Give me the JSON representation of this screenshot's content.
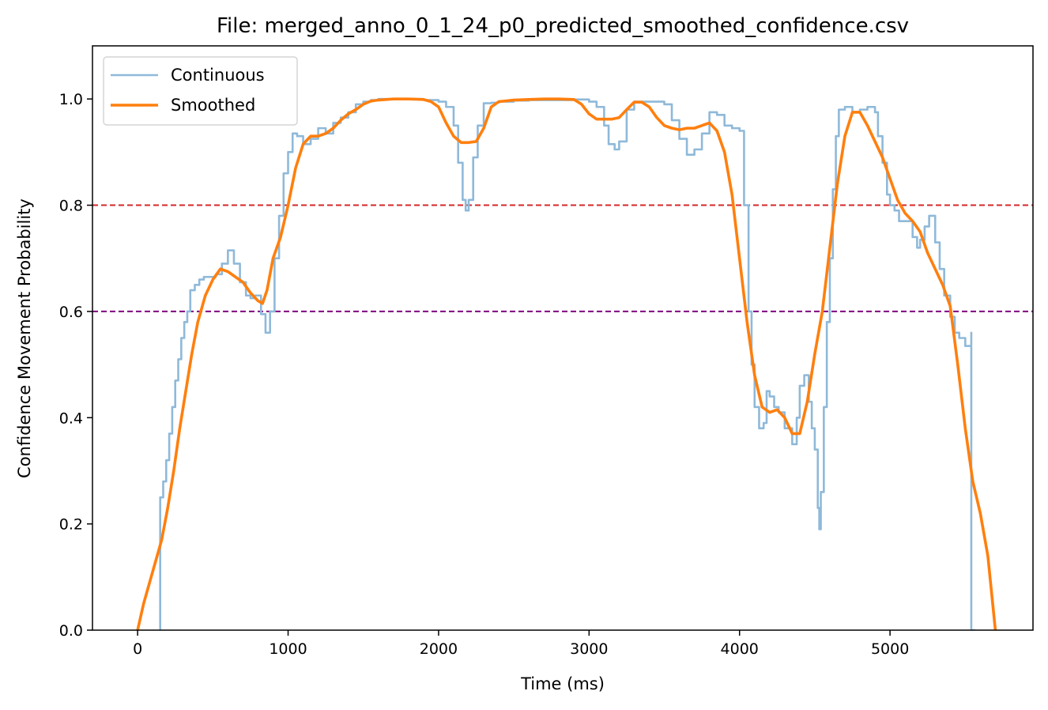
{
  "chart_data": {
    "type": "line",
    "title": "File: merged_anno_0_1_24_p0_predicted_smoothed_confidence.csv",
    "xlabel": "Time (ms)",
    "ylabel": "Confidence Movement Probability",
    "xlim": [
      -300,
      5950
    ],
    "ylim": [
      0.0,
      1.1
    ],
    "x_ticks": [
      0,
      1000,
      2000,
      3000,
      4000,
      5000
    ],
    "x_tick_labels": [
      "0",
      "1000",
      "2000",
      "3000",
      "4000",
      "5000"
    ],
    "y_ticks": [
      0.0,
      0.2,
      0.4,
      0.6,
      0.8,
      1.0
    ],
    "y_tick_labels": [
      "0.0",
      "0.2",
      "0.4",
      "0.6",
      "0.8",
      "1.0"
    ],
    "grid": false,
    "legend_position": "top-left",
    "hlines": [
      {
        "y": 0.8,
        "color": "#d62728",
        "style": "dashed"
      },
      {
        "y": 0.6,
        "color": "#800080",
        "style": "dashed"
      }
    ],
    "series": [
      {
        "name": "Continuous",
        "color": "#8fb9d9",
        "style": "step",
        "x": [
          150,
          150,
          170,
          190,
          210,
          230,
          250,
          270,
          290,
          310,
          330,
          350,
          380,
          410,
          440,
          480,
          520,
          560,
          600,
          640,
          680,
          720,
          750,
          780,
          820,
          850,
          880,
          910,
          940,
          970,
          1000,
          1030,
          1060,
          1100,
          1150,
          1200,
          1250,
          1300,
          1350,
          1400,
          1450,
          1500,
          1550,
          1600,
          1700,
          1800,
          1900,
          2000,
          2050,
          2100,
          2130,
          2160,
          2180,
          2200,
          2230,
          2260,
          2300,
          2350,
          2400,
          2500,
          2600,
          2700,
          2800,
          2900,
          3000,
          3050,
          3100,
          3130,
          3170,
          3200,
          3250,
          3300,
          3400,
          3500,
          3550,
          3600,
          3650,
          3700,
          3750,
          3800,
          3850,
          3900,
          3950,
          4000,
          4030,
          4060,
          4080,
          4100,
          4130,
          4160,
          4180,
          4200,
          4230,
          4260,
          4300,
          4350,
          4380,
          4400,
          4430,
          4460,
          4480,
          4500,
          4520,
          4530,
          4540,
          4560,
          4580,
          4600,
          4620,
          4640,
          4660,
          4700,
          4750,
          4800,
          4850,
          4900,
          4920,
          4950,
          4980,
          5000,
          5030,
          5060,
          5100,
          5150,
          5180,
          5200,
          5230,
          5260,
          5300,
          5330,
          5360,
          5400,
          5430,
          5460,
          5500,
          5530,
          5540,
          5540,
          5560
        ],
        "y": [
          0.0,
          0.25,
          0.28,
          0.32,
          0.37,
          0.42,
          0.47,
          0.51,
          0.55,
          0.58,
          0.6,
          0.64,
          0.65,
          0.66,
          0.665,
          0.665,
          0.67,
          0.69,
          0.715,
          0.69,
          0.655,
          0.63,
          0.625,
          0.63,
          0.595,
          0.56,
          0.6,
          0.7,
          0.78,
          0.86,
          0.9,
          0.935,
          0.93,
          0.915,
          0.925,
          0.945,
          0.935,
          0.955,
          0.965,
          0.975,
          0.99,
          0.995,
          0.998,
          1.0,
          1.0,
          1.0,
          0.998,
          0.995,
          0.985,
          0.95,
          0.88,
          0.81,
          0.79,
          0.81,
          0.89,
          0.95,
          0.992,
          0.993,
          0.995,
          0.997,
          0.998,
          0.998,
          0.998,
          0.999,
          0.995,
          0.985,
          0.95,
          0.915,
          0.905,
          0.92,
          0.98,
          0.995,
          0.995,
          0.99,
          0.96,
          0.925,
          0.895,
          0.905,
          0.935,
          0.975,
          0.97,
          0.95,
          0.945,
          0.94,
          0.8,
          0.6,
          0.5,
          0.42,
          0.38,
          0.39,
          0.45,
          0.44,
          0.42,
          0.41,
          0.38,
          0.35,
          0.4,
          0.46,
          0.48,
          0.43,
          0.38,
          0.34,
          0.23,
          0.19,
          0.26,
          0.42,
          0.58,
          0.7,
          0.83,
          0.93,
          0.98,
          0.985,
          0.975,
          0.98,
          0.985,
          0.975,
          0.93,
          0.88,
          0.82,
          0.8,
          0.79,
          0.77,
          0.77,
          0.74,
          0.72,
          0.735,
          0.76,
          0.78,
          0.73,
          0.68,
          0.63,
          0.59,
          0.56,
          0.55,
          0.535,
          0.535,
          0.56,
          0.0,
          0.0
        ]
      },
      {
        "name": "Smoothed",
        "color": "#ff7f0e",
        "style": "line",
        "x": [
          0,
          40,
          80,
          120,
          160,
          200,
          240,
          280,
          320,
          360,
          400,
          450,
          500,
          550,
          600,
          650,
          700,
          750,
          800,
          830,
          860,
          900,
          950,
          1000,
          1050,
          1100,
          1150,
          1200,
          1250,
          1300,
          1350,
          1400,
          1450,
          1500,
          1550,
          1600,
          1700,
          1800,
          1900,
          1950,
          2000,
          2050,
          2100,
          2150,
          2200,
          2250,
          2300,
          2350,
          2400,
          2500,
          2600,
          2700,
          2800,
          2900,
          2950,
          3000,
          3050,
          3100,
          3150,
          3200,
          3250,
          3300,
          3350,
          3400,
          3450,
          3500,
          3550,
          3600,
          3650,
          3700,
          3750,
          3800,
          3850,
          3900,
          3950,
          4000,
          4050,
          4100,
          4150,
          4200,
          4250,
          4300,
          4350,
          4400,
          4450,
          4500,
          4550,
          4600,
          4650,
          4700,
          4750,
          4800,
          4850,
          4900,
          4950,
          5000,
          5050,
          5100,
          5150,
          5200,
          5250,
          5300,
          5350,
          5400,
          5450,
          5500,
          5550,
          5600,
          5650,
          5700
        ],
        "y": [
          0.0,
          0.05,
          0.09,
          0.13,
          0.17,
          0.23,
          0.3,
          0.38,
          0.45,
          0.52,
          0.58,
          0.63,
          0.66,
          0.68,
          0.675,
          0.665,
          0.655,
          0.635,
          0.62,
          0.615,
          0.64,
          0.7,
          0.74,
          0.8,
          0.87,
          0.915,
          0.93,
          0.93,
          0.935,
          0.945,
          0.96,
          0.972,
          0.98,
          0.99,
          0.996,
          0.998,
          1.0,
          1.0,
          0.999,
          0.995,
          0.985,
          0.955,
          0.93,
          0.918,
          0.918,
          0.92,
          0.945,
          0.985,
          0.995,
          0.998,
          0.999,
          1.0,
          1.0,
          0.999,
          0.99,
          0.972,
          0.962,
          0.962,
          0.962,
          0.965,
          0.98,
          0.994,
          0.994,
          0.985,
          0.965,
          0.95,
          0.945,
          0.942,
          0.945,
          0.945,
          0.95,
          0.955,
          0.94,
          0.9,
          0.82,
          0.7,
          0.58,
          0.48,
          0.42,
          0.41,
          0.415,
          0.4,
          0.37,
          0.37,
          0.43,
          0.52,
          0.6,
          0.72,
          0.84,
          0.93,
          0.975,
          0.975,
          0.95,
          0.92,
          0.89,
          0.85,
          0.81,
          0.785,
          0.77,
          0.75,
          0.71,
          0.68,
          0.65,
          0.61,
          0.5,
          0.38,
          0.28,
          0.22,
          0.14,
          0.0
        ]
      }
    ]
  }
}
